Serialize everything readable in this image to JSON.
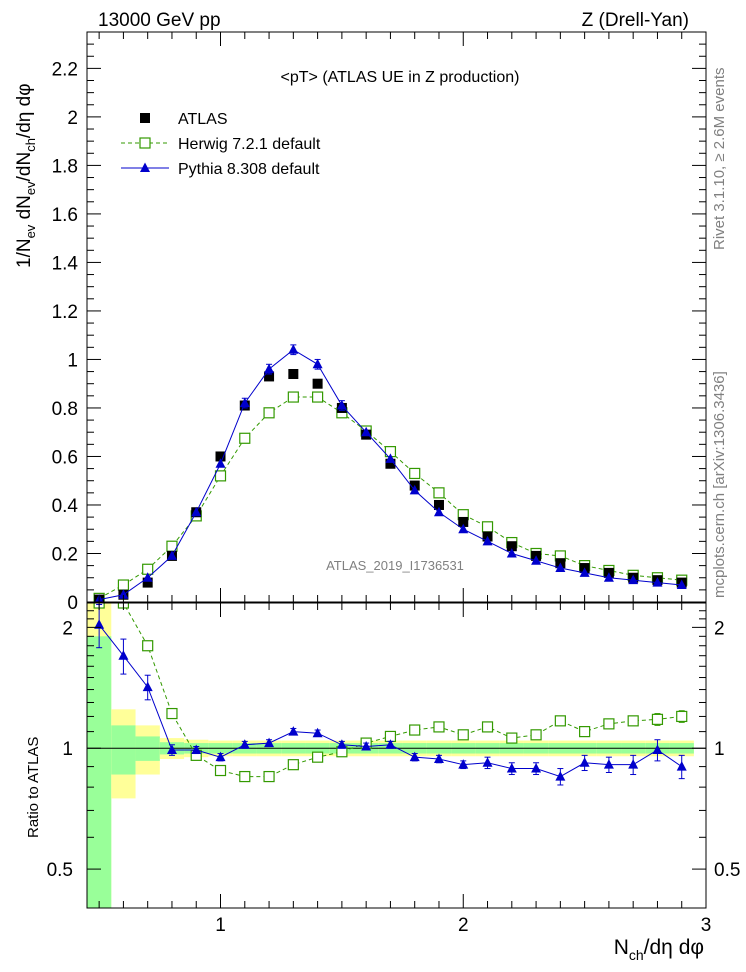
{
  "header": {
    "left": "13000 GeV pp",
    "right": "Z (Drell-Yan)"
  },
  "side_labels": {
    "top": "Rivet 3.1.10, ≥ 2.6M events",
    "bottom": "mcplots.cern.ch [arXiv:1306.3436]"
  },
  "chart_data": [
    {
      "type": "scatter",
      "panel": "main",
      "title": "<pT> (ATLAS UE in Z production)",
      "watermark": "ATLAS_2019_I1736531",
      "ylabel": "1/N_ev dN_ev/dN_ch/dη dφ",
      "xlabel": "N_ch/dη dφ",
      "xlim": [
        0.45,
        3.0
      ],
      "ylim": [
        0.0,
        2.35
      ],
      "yticks": [
        "0",
        "0.2",
        "0.4",
        "0.6",
        "0.8",
        "1",
        "1.2",
        "1.4",
        "1.6",
        "1.8",
        "2",
        "2.2"
      ],
      "xticks": [
        "1",
        "2",
        "3"
      ],
      "legend_position": "top-left",
      "x": [
        0.5,
        0.6,
        0.7,
        0.8,
        0.9,
        1.0,
        1.1,
        1.2,
        1.3,
        1.4,
        1.5,
        1.6,
        1.7,
        1.8,
        1.9,
        2.0,
        2.1,
        2.2,
        2.3,
        2.4,
        2.5,
        2.6,
        2.7,
        2.8,
        2.9
      ],
      "series": [
        {
          "name": "ATLAS",
          "color": "#000000",
          "marker": "square-filled",
          "values": [
            0.01,
            0.03,
            0.08,
            0.19,
            0.37,
            0.6,
            0.81,
            0.93,
            0.94,
            0.9,
            0.8,
            0.69,
            0.57,
            0.48,
            0.4,
            0.33,
            0.27,
            0.23,
            0.19,
            0.16,
            0.14,
            0.12,
            0.1,
            0.09,
            0.08
          ]
        },
        {
          "name": "Herwig 7.2.1 default",
          "color": "#339900",
          "marker": "square-open",
          "line": "dashed",
          "values": [
            0.015,
            0.07,
            0.135,
            0.23,
            0.355,
            0.52,
            0.675,
            0.78,
            0.845,
            0.845,
            0.78,
            0.705,
            0.62,
            0.53,
            0.45,
            0.36,
            0.31,
            0.245,
            0.2,
            0.19,
            0.15,
            0.13,
            0.11,
            0.1,
            0.09
          ]
        },
        {
          "name": "Pythia 8.308 default",
          "color": "#0000cc",
          "marker": "triangle-filled",
          "line": "solid",
          "values": [
            0.01,
            0.03,
            0.1,
            0.19,
            0.37,
            0.57,
            0.82,
            0.96,
            1.04,
            0.98,
            0.81,
            0.7,
            0.59,
            0.46,
            0.37,
            0.3,
            0.25,
            0.2,
            0.17,
            0.14,
            0.12,
            0.1,
            0.09,
            0.08,
            0.07
          ]
        }
      ]
    },
    {
      "type": "scatter",
      "panel": "ratio",
      "ylabel": "Ratio to ATLAS",
      "xlabel": "N_ch/dη dφ",
      "xlim": [
        0.45,
        3.0
      ],
      "ylim": [
        0.4,
        2.3
      ],
      "log_y": true,
      "yticks": [
        "0.5",
        "1",
        "2"
      ],
      "xticks": [
        "1",
        "2",
        "3"
      ],
      "x": [
        0.5,
        0.6,
        0.7,
        0.8,
        0.9,
        1.0,
        1.1,
        1.2,
        1.3,
        1.4,
        1.5,
        1.6,
        1.7,
        1.8,
        1.9,
        2.0,
        2.1,
        2.2,
        2.3,
        2.4,
        2.5,
        2.6,
        2.7,
        2.8,
        2.9
      ],
      "bands": {
        "stat_color": "#99ff99",
        "total_color": "#ffff99",
        "stat_halfwidth": [
          0.9,
          0.14,
          0.07,
          0.035,
          0.03,
          0.03,
          0.03,
          0.03,
          0.03,
          0.03,
          0.03,
          0.03,
          0.03,
          0.03,
          0.03,
          0.03,
          0.03,
          0.03,
          0.03,
          0.03,
          0.03,
          0.03,
          0.03,
          0.03,
          0.03
        ],
        "total_halfwidth": [
          1.3,
          0.25,
          0.14,
          0.06,
          0.05,
          0.045,
          0.045,
          0.045,
          0.045,
          0.045,
          0.045,
          0.045,
          0.045,
          0.045,
          0.045,
          0.045,
          0.045,
          0.045,
          0.045,
          0.045,
          0.045,
          0.045,
          0.045,
          0.045,
          0.045
        ]
      },
      "series": [
        {
          "name": "Herwig 7.2.1 default",
          "color": "#339900",
          "marker": "square-open",
          "line": "dashed",
          "values": [
            2.3,
            2.3,
            1.8,
            1.22,
            0.96,
            0.88,
            0.85,
            0.85,
            0.91,
            0.95,
            0.98,
            1.03,
            1.07,
            1.11,
            1.13,
            1.08,
            1.13,
            1.06,
            1.08,
            1.17,
            1.1,
            1.15,
            1.17,
            1.18,
            1.2
          ],
          "errors": [
            0,
            0,
            0,
            0,
            0,
            0,
            0,
            0,
            0,
            0,
            0,
            0,
            0,
            0,
            0,
            0,
            0,
            0,
            0,
            0.02,
            0.03,
            0.03,
            0.03,
            0.04,
            0.04
          ]
        },
        {
          "name": "Pythia 8.308 default",
          "color": "#0000cc",
          "marker": "triangle-filled",
          "line": "solid",
          "values": [
            2.03,
            1.7,
            1.42,
            0.99,
            0.99,
            0.95,
            1.02,
            1.03,
            1.1,
            1.09,
            1.02,
            1.01,
            1.02,
            0.95,
            0.94,
            0.91,
            0.92,
            0.89,
            0.89,
            0.85,
            0.92,
            0.91,
            0.91,
            0.99,
            0.9
          ],
          "errors": [
            0.25,
            0.17,
            0.1,
            0.03,
            0.02,
            0.02,
            0.02,
            0.02,
            0.02,
            0.02,
            0.02,
            0.02,
            0.02,
            0.02,
            0.02,
            0.02,
            0.03,
            0.03,
            0.03,
            0.04,
            0.04,
            0.04,
            0.05,
            0.06,
            0.06
          ]
        }
      ]
    }
  ]
}
